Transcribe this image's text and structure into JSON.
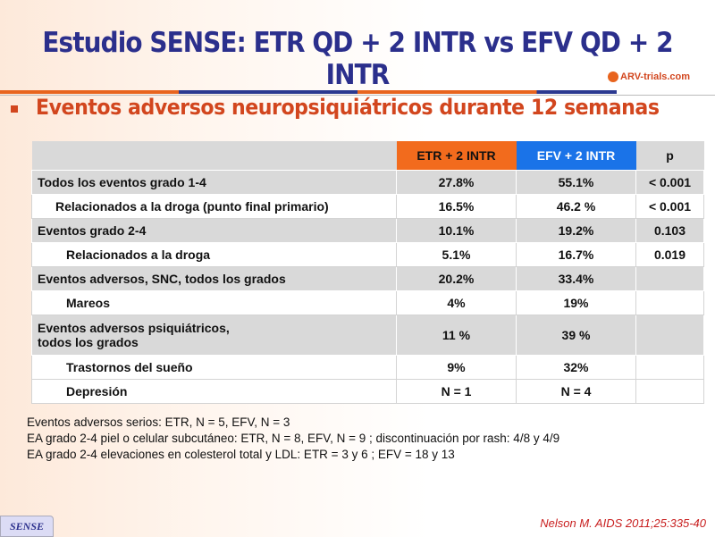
{
  "title": "Estudio SENSE: ETR QD + 2 INTR vs EFV QD + 2 INTR",
  "logo": "ARV-trials.com",
  "subtitle": "Eventos adversos neuropsiquiátricos durante 12 semanas",
  "table": {
    "headers": [
      "",
      "ETR + 2 INTR",
      "EFV + 2 INTR",
      "p"
    ],
    "header_colors": {
      "etr": "#f26b1d",
      "efv": "#1a73e8"
    },
    "rows": [
      {
        "label": "Todos los eventos grado 1-4",
        "etr": "27.8%",
        "efv": "55.1%",
        "p": "< 0.001"
      },
      {
        "label": "Relacionados a la droga (punto final primario)",
        "etr": "16.5%",
        "efv": "46.2 %",
        "p": "< 0.001"
      },
      {
        "label": "Eventos grado 2-4",
        "etr": "10.1%",
        "efv": "19.2%",
        "p": "0.103"
      },
      {
        "label": "Relacionados a la droga",
        "etr": "5.1%",
        "efv": "16.7%",
        "p": "0.019"
      },
      {
        "label": "Eventos adversos, SNC, todos los grados",
        "etr": "20.2%",
        "efv": "33.4%",
        "p": ""
      },
      {
        "label": "Mareos",
        "etr": "4%",
        "efv": "19%",
        "p": ""
      },
      {
        "label": "Eventos adversos psiquiátricos, todos los grados",
        "label_line1": "Eventos adversos psiquiátricos,",
        "label_line2": "todos los grados",
        "etr": "11 %",
        "efv": "39 %",
        "p": ""
      },
      {
        "label": "Trastornos del sueño",
        "etr": "9%",
        "efv": "32%",
        "p": ""
      },
      {
        "label": "Depresión",
        "etr": "N = 1",
        "efv": "N = 4",
        "p": ""
      }
    ]
  },
  "notes": [
    "Eventos adversos serios: ETR, N = 5, EFV, N = 3",
    "EA grado 2-4 piel o celular subcutáneo: ETR, N = 8, EFV, N = 9 ; discontinuación por rash: 4/8 y 4/9",
    "EA grado 2-4 elevaciones en colesterol total y LDL: ETR = 3 y 6 ; EFV = 18 y 13"
  ],
  "footer": {
    "badge": "SENSE",
    "citation": "Nelson M. AIDS 2011;25:335-40"
  }
}
